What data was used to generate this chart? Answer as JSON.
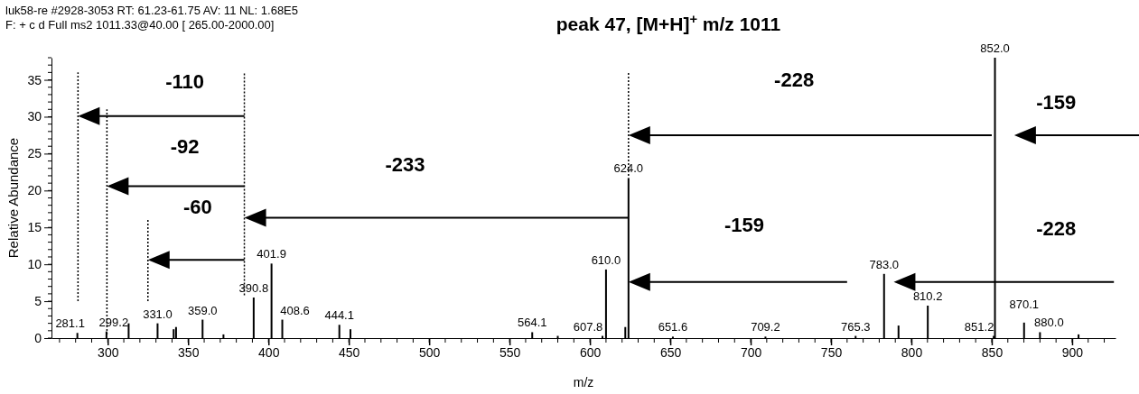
{
  "chart_data": {
    "type": "bar",
    "title": "peak 47, [M+H]$^{+}$ m/z 1011",
    "xlabel": "m/z",
    "ylabel": "Relative Abundance",
    "x": [
      281.1,
      299.2,
      313.0,
      331.0,
      341.0,
      342.5,
      359.0,
      372.0,
      390.8,
      401.9,
      408.6,
      444.1,
      451.0,
      564.1,
      580.0,
      607.8,
      610.0,
      622.0,
      624.0,
      651.6,
      709.2,
      765.3,
      783.0,
      792.0,
      810.2,
      851.2,
      852.0,
      870.1,
      880.0,
      904.0
    ],
    "values": [
      0.7,
      0.9,
      2.0,
      2.0,
      1.2,
      1.5,
      2.5,
      0.5,
      5.5,
      10.1,
      2.5,
      1.8,
      1.2,
      0.8,
      0.3,
      0.3,
      9.3,
      1.5,
      21.7,
      0.2,
      0.2,
      0.3,
      8.7,
      1.7,
      4.4,
      0.3,
      38,
      2.1,
      0.8,
      0.5
    ],
    "color": "#000000",
    "xlim": [
      265,
      927
    ],
    "ylim": [
      0,
      38
    ],
    "xticks": [
      300,
      350,
      400,
      450,
      500,
      550,
      600,
      650,
      700,
      750,
      800,
      850,
      900
    ],
    "yticks": [
      0,
      5,
      10,
      15,
      20,
      25,
      30,
      35
    ],
    "annotations": [
      "luk58-re #2928-3053   RT: 61.23-61.75   AV: 11   NL: 1.68E5",
      "F: + c d Full ms2 1011.33@40.00 [ 265.00-2000.00]",
      "-110",
      "-92",
      "-60",
      "-233",
      "-228",
      "-159",
      "-159",
      "-228",
      {
        "text": "281.1",
        "x": 281.1,
        "y": 0.7
      },
      {
        "text": "299.2",
        "x": 299.2,
        "y": 0.9
      },
      {
        "text": "331.0",
        "x": 331.0,
        "y": 2.0
      },
      {
        "text": "359.0",
        "x": 359.0,
        "y": 2.5
      },
      {
        "text": "390.8",
        "x": 390.8,
        "y": 5.5
      },
      {
        "text": "401.9",
        "x": 401.9,
        "y": 10.1
      },
      {
        "text": "408.6",
        "x": 408.6,
        "y": 2.5
      },
      {
        "text": "444.1",
        "x": 444.1,
        "y": 1.8
      },
      {
        "text": "564.1",
        "x": 564.1,
        "y": 0.8
      },
      {
        "text": "607.8",
        "x": 607.8,
        "y": 0.3
      },
      {
        "text": "610.0",
        "x": 610.0,
        "y": 9.3
      },
      {
        "text": "624.0",
        "x": 624.0,
        "y": 21.7
      },
      {
        "text": "651.6",
        "x": 651.6,
        "y": 0.2
      },
      {
        "text": "709.2",
        "x": 709.2,
        "y": 0.2
      },
      {
        "text": "765.3",
        "x": 765.3,
        "y": 0.3
      },
      {
        "text": "783.0",
        "x": 783.0,
        "y": 8.7
      },
      {
        "text": "810.2",
        "x": 810.2,
        "y": 4.4
      },
      {
        "text": "851.2",
        "x": 851.2,
        "y": 0.3
      },
      {
        "text": "852.0",
        "x": 852.0,
        "y": 38
      },
      {
        "text": "870.1",
        "x": 870.1,
        "y": 2.1
      },
      {
        "text": "880.0",
        "x": 880.0,
        "y": 0.8
      }
    ]
  }
}
